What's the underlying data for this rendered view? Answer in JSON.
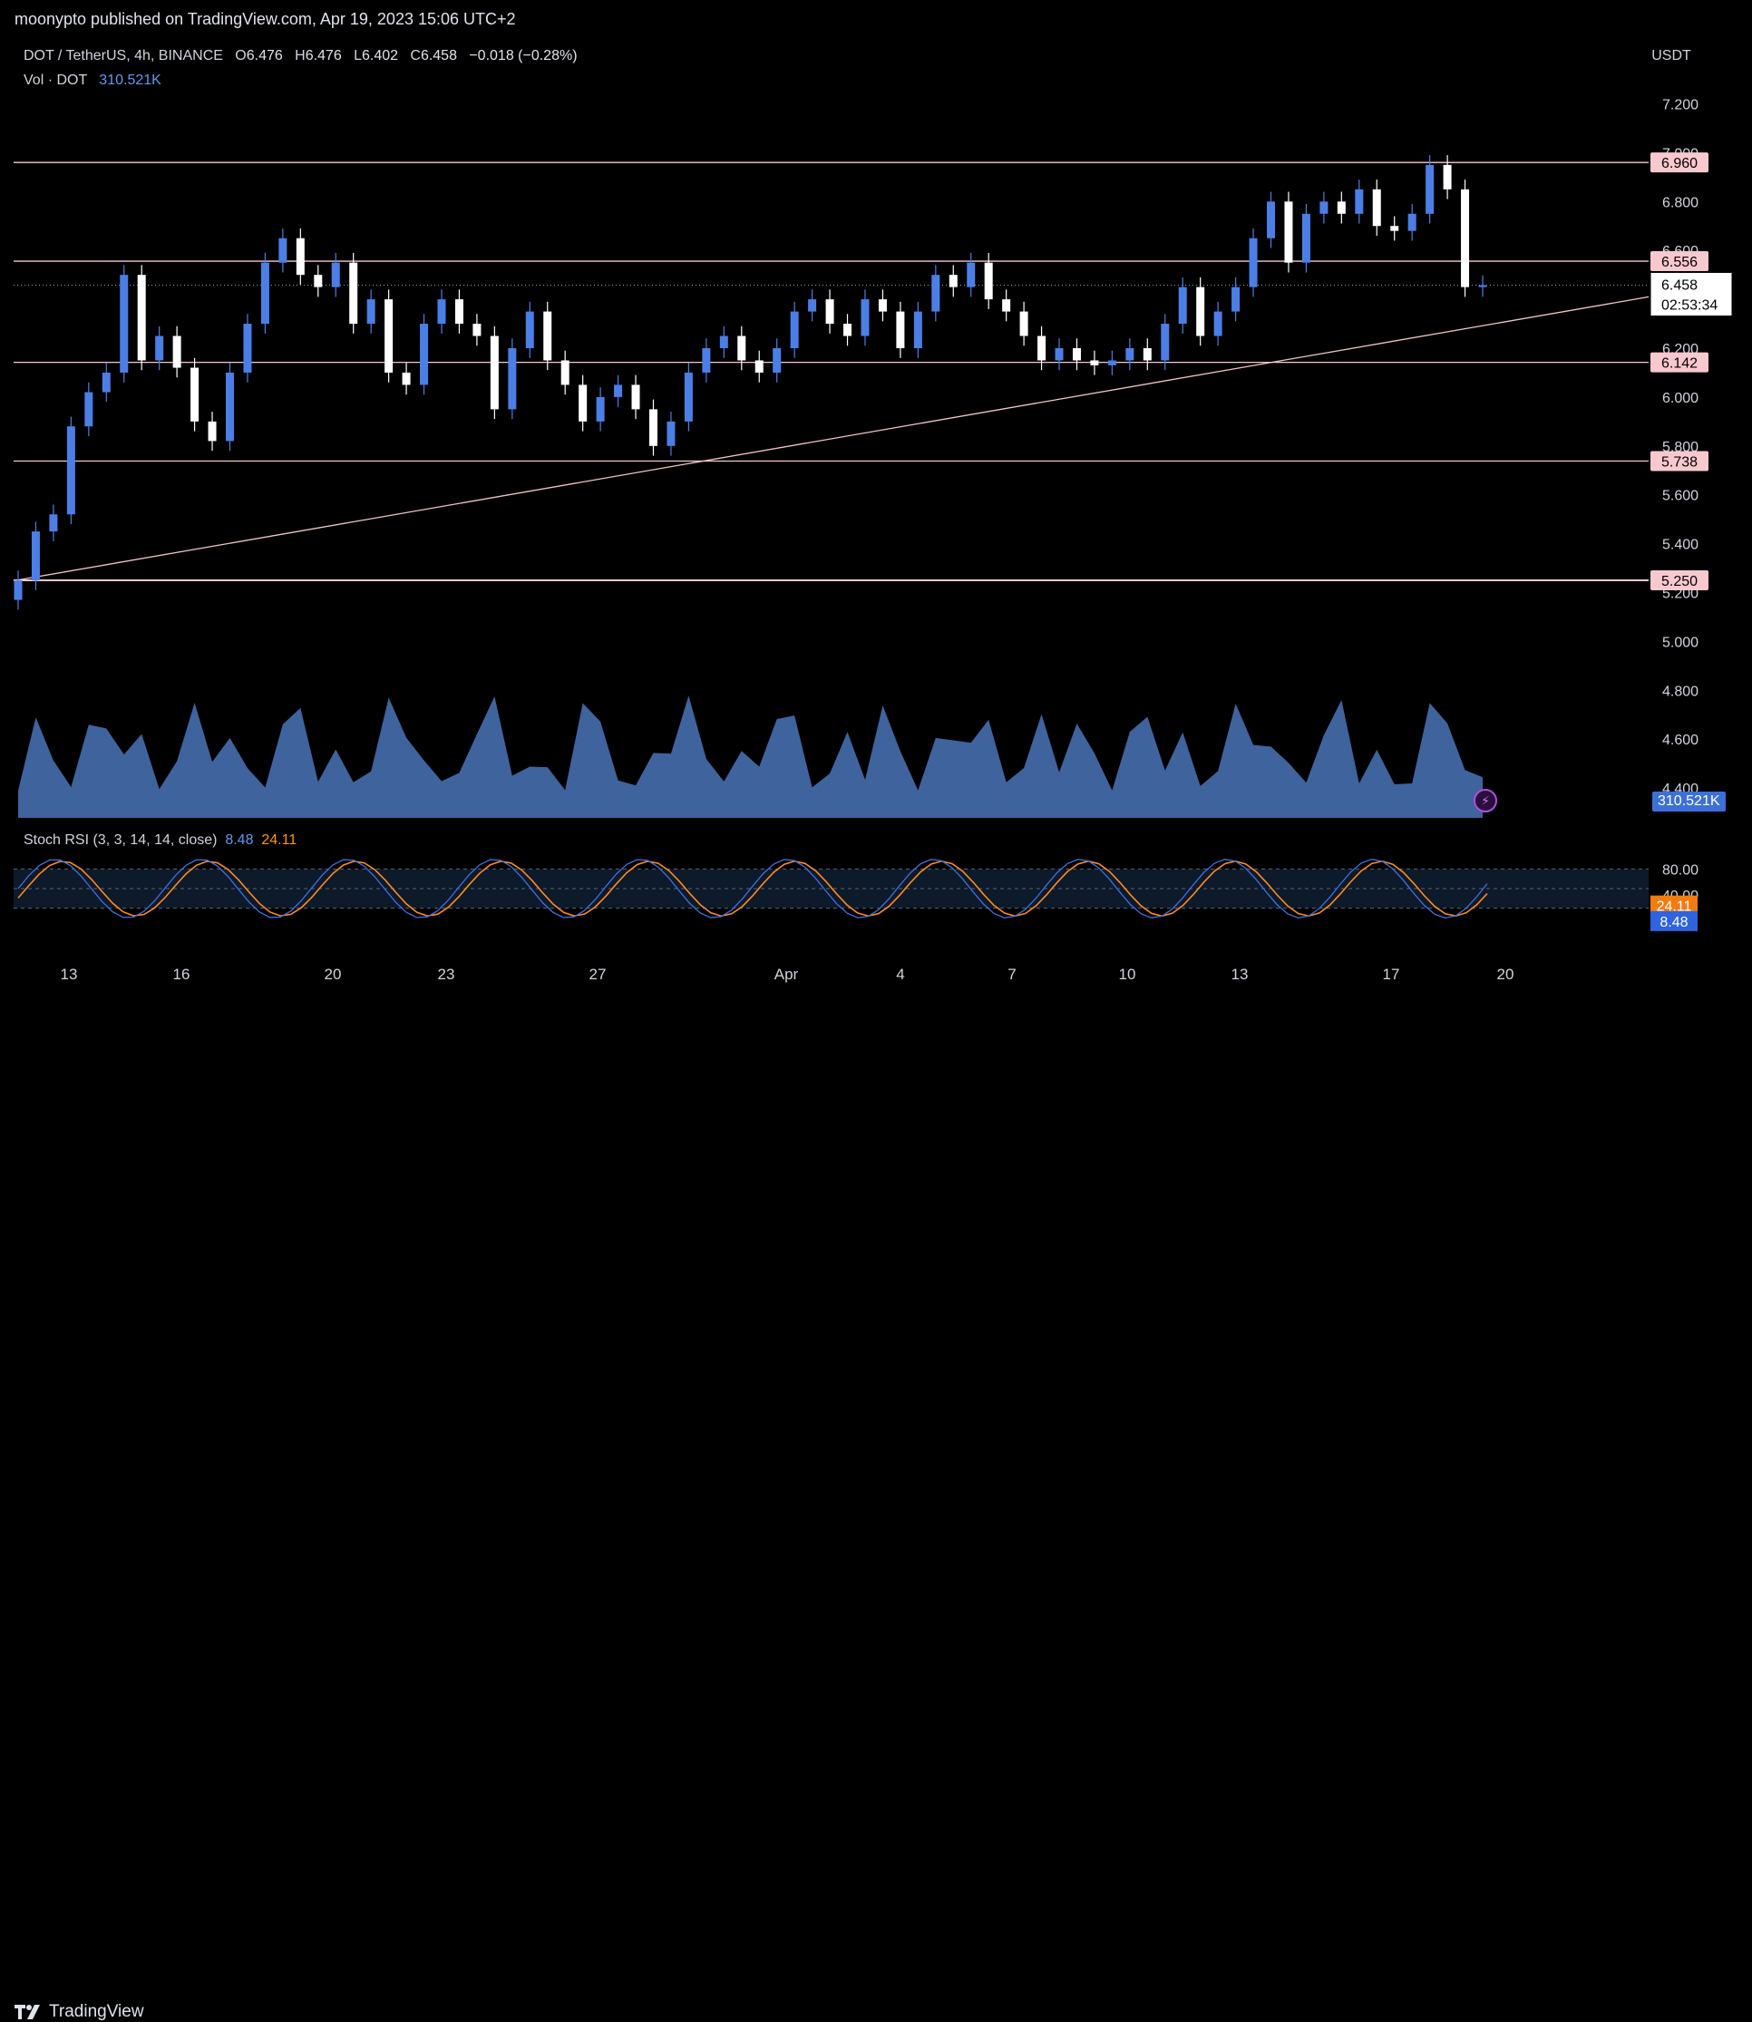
{
  "header": {
    "published": "moonypto published on TradingView.com, Apr 19, 2023 15:06 UTC+2"
  },
  "legend": {
    "symbol": "DOT / TetherUS, 4h, BINANCE",
    "o_label": "O",
    "o": "6.476",
    "h_label": "H",
    "h": "6.476",
    "l_label": "L",
    "l": "6.402",
    "c_label": "C",
    "c": "6.458",
    "change": "−0.018 (−0.28%)",
    "vol_label": "Vol · DOT",
    "vol": "310.521K",
    "stoch_label": "Stoch RSI (3, 3, 14, 14, close)",
    "stoch_k": "8.48",
    "stoch_d": "24.11"
  },
  "price_axis": {
    "currency": "USDT",
    "ticks": [
      "7.200",
      "7.000",
      "6.800",
      "6.600",
      "6.400",
      "6.200",
      "6.000",
      "5.800",
      "5.600",
      "5.400",
      "5.200",
      "5.000",
      "4.800",
      "4.600",
      "4.400"
    ]
  },
  "horizontal_levels": [
    "6.960",
    "6.556",
    "6.142",
    "5.738",
    "5.250"
  ],
  "last_price": {
    "value": "6.458",
    "countdown": "02:53:34"
  },
  "volume_badge": "310.521K",
  "stoch_axis": {
    "ticks": [
      "80.00",
      "40.00",
      "0.00"
    ],
    "k_badge": "8.48",
    "d_badge": "24.11"
  },
  "time_axis": [
    "13",
    "16",
    "20",
    "23",
    "27",
    "Apr",
    "4",
    "7",
    "10",
    "13",
    "17",
    "20"
  ],
  "footer": {
    "brand": "TradingView"
  },
  "colors": {
    "up": "#4b7fe6",
    "down": "#ffffff",
    "level": "#f8c8cf",
    "trend": "#f2c6c8",
    "k_line": "#3f6fe3",
    "d_line": "#ff8a1f",
    "volume": "#4a74b8"
  },
  "chart_data": {
    "type": "candlestick",
    "interval": "4h",
    "x_range": [
      "Mar 12, 2023",
      "Apr 19, 2023"
    ],
    "series": [
      {
        "name": "DOT / TetherUS",
        "points": [
          {
            "t": "Mar 12",
            "close": 5.25
          },
          {
            "t": "Mar 12",
            "close": 5.45
          },
          {
            "t": "Mar 13",
            "close": 5.52
          },
          {
            "t": "Mar 13",
            "close": 5.88
          },
          {
            "t": "Mar 14",
            "close": 6.02
          },
          {
            "t": "Mar 14",
            "close": 6.1
          },
          {
            "t": "Mar 14",
            "close": 6.5
          },
          {
            "t": "Mar 15",
            "close": 6.15
          },
          {
            "t": "Mar 15",
            "close": 6.25
          },
          {
            "t": "Mar 15",
            "close": 6.12
          },
          {
            "t": "Mar 16",
            "close": 5.9
          },
          {
            "t": "Mar 16",
            "close": 5.82
          },
          {
            "t": "Mar 17",
            "close": 6.1
          },
          {
            "t": "Mar 17",
            "close": 6.3
          },
          {
            "t": "Mar 17",
            "close": 6.55
          },
          {
            "t": "Mar 18",
            "close": 6.65
          },
          {
            "t": "Mar 18",
            "close": 6.5
          },
          {
            "t": "Mar 19",
            "close": 6.45
          },
          {
            "t": "Mar 19",
            "close": 6.55
          },
          {
            "t": "Mar 20",
            "close": 6.3
          },
          {
            "t": "Mar 20",
            "close": 6.4
          },
          {
            "t": "Mar 21",
            "close": 6.1
          },
          {
            "t": "Mar 21",
            "close": 6.05
          },
          {
            "t": "Mar 22",
            "close": 6.3
          },
          {
            "t": "Mar 22",
            "close": 6.4
          },
          {
            "t": "Mar 22",
            "close": 6.3
          },
          {
            "t": "Mar 23",
            "close": 6.25
          },
          {
            "t": "Mar 23",
            "close": 5.95
          },
          {
            "t": "Mar 24",
            "close": 6.2
          },
          {
            "t": "Mar 24",
            "close": 6.35
          },
          {
            "t": "Mar 25",
            "close": 6.15
          },
          {
            "t": "Mar 25",
            "close": 6.05
          },
          {
            "t": "Mar 26",
            "close": 5.9
          },
          {
            "t": "Mar 26",
            "close": 6.0
          },
          {
            "t": "Mar 27",
            "close": 6.05
          },
          {
            "t": "Mar 27",
            "close": 5.95
          },
          {
            "t": "Mar 27",
            "close": 5.8
          },
          {
            "t": "Mar 28",
            "close": 5.9
          },
          {
            "t": "Mar 28",
            "close": 6.1
          },
          {
            "t": "Mar 29",
            "close": 6.2
          },
          {
            "t": "Mar 29",
            "close": 6.25
          },
          {
            "t": "Mar 30",
            "close": 6.15
          },
          {
            "t": "Mar 30",
            "close": 6.1
          },
          {
            "t": "Mar 31",
            "close": 6.2
          },
          {
            "t": "Mar 31",
            "close": 6.35
          },
          {
            "t": "Apr 1",
            "close": 6.4
          },
          {
            "t": "Apr 1",
            "close": 6.3
          },
          {
            "t": "Apr 2",
            "close": 6.25
          },
          {
            "t": "Apr 2",
            "close": 6.4
          },
          {
            "t": "Apr 3",
            "close": 6.35
          },
          {
            "t": "Apr 3",
            "close": 6.2
          },
          {
            "t": "Apr 4",
            "close": 6.35
          },
          {
            "t": "Apr 4",
            "close": 6.5
          },
          {
            "t": "Apr 5",
            "close": 6.45
          },
          {
            "t": "Apr 5",
            "close": 6.55
          },
          {
            "t": "Apr 6",
            "close": 6.4
          },
          {
            "t": "Apr 6",
            "close": 6.35
          },
          {
            "t": "Apr 7",
            "close": 6.25
          },
          {
            "t": "Apr 7",
            "close": 6.15
          },
          {
            "t": "Apr 8",
            "close": 6.2
          },
          {
            "t": "Apr 8",
            "close": 6.15
          },
          {
            "t": "Apr 9",
            "close": 6.13
          },
          {
            "t": "Apr 9",
            "close": 6.15
          },
          {
            "t": "Apr 10",
            "close": 6.2
          },
          {
            "t": "Apr 10",
            "close": 6.15
          },
          {
            "t": "Apr 11",
            "close": 6.3
          },
          {
            "t": "Apr 11",
            "close": 6.45
          },
          {
            "t": "Apr 12",
            "close": 6.25
          },
          {
            "t": "Apr 12",
            "close": 6.35
          },
          {
            "t": "Apr 13",
            "close": 6.45
          },
          {
            "t": "Apr 13",
            "close": 6.65
          },
          {
            "t": "Apr 14",
            "close": 6.8
          },
          {
            "t": "Apr 14",
            "close": 6.55
          },
          {
            "t": "Apr 15",
            "close": 6.75
          },
          {
            "t": "Apr 15",
            "close": 6.8
          },
          {
            "t": "Apr 16",
            "close": 6.75
          },
          {
            "t": "Apr 16",
            "close": 6.85
          },
          {
            "t": "Apr 17",
            "close": 6.7
          },
          {
            "t": "Apr 17",
            "close": 6.68
          },
          {
            "t": "Apr 18",
            "close": 6.75
          },
          {
            "t": "Apr 18",
            "close": 6.95
          },
          {
            "t": "Apr 19",
            "close": 6.85
          },
          {
            "t": "Apr 19",
            "close": 6.45
          },
          {
            "t": "Apr 19",
            "close": 6.458
          }
        ]
      },
      {
        "name": "Vol · DOT",
        "last": "310.521K"
      },
      {
        "name": "Stoch RSI K",
        "last": 8.48
      },
      {
        "name": "Stoch RSI D",
        "last": 24.11
      }
    ],
    "annotations": {
      "horizontal_lines": [
        6.96,
        6.556,
        6.142,
        5.738,
        5.25
      ],
      "trendline": {
        "from": {
          "t": "Mar 12",
          "price": 5.25
        },
        "to": {
          "t": "Apr 21",
          "price": 6.41
        }
      }
    },
    "ylim": [
      4.3,
      7.3
    ],
    "stoch_ylim": [
      0,
      100
    ],
    "grid": false
  }
}
